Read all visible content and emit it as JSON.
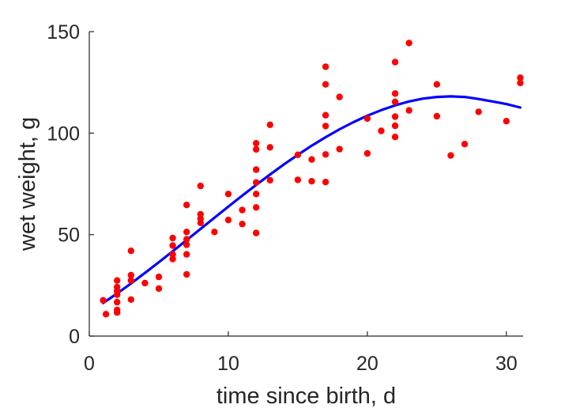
{
  "chart_data": {
    "type": "scatter",
    "title": "",
    "xlabel": "time since birth, d",
    "ylabel": "wet weight, g",
    "xlim": [
      0,
      31.2
    ],
    "ylim": [
      0,
      150
    ],
    "xticks": [
      0,
      10,
      20,
      30
    ],
    "xtick_labels": [
      "0",
      "10",
      "20",
      "30"
    ],
    "yticks": [
      0,
      50,
      100,
      150
    ],
    "ytick_labels": [
      "0",
      "50",
      "100",
      "150"
    ],
    "grid": false,
    "legend": "none",
    "colors": {
      "points": "#ff0000",
      "fit": "#0000ff",
      "axis": "#262626"
    },
    "series": [
      {
        "kind": "scatter",
        "points": [
          [
            1,
            17.6
          ],
          [
            1.2,
            10.8
          ],
          [
            2,
            27.4
          ],
          [
            2,
            24.1
          ],
          [
            2,
            22.2
          ],
          [
            2,
            20.4
          ],
          [
            2,
            16.7
          ],
          [
            2,
            12.9
          ],
          [
            2,
            11.6
          ],
          [
            3,
            42.0
          ],
          [
            3,
            30.0
          ],
          [
            3,
            27.4
          ],
          [
            3,
            18.0
          ],
          [
            4,
            26.1
          ],
          [
            5,
            29.2
          ],
          [
            5,
            23.4
          ],
          [
            6,
            48.3
          ],
          [
            6,
            44.6
          ],
          [
            6,
            40.3
          ],
          [
            6,
            38.0
          ],
          [
            7,
            64.6
          ],
          [
            7,
            51.3
          ],
          [
            7,
            47.7
          ],
          [
            7,
            45.0
          ],
          [
            7,
            40.3
          ],
          [
            7,
            30.4
          ],
          [
            8,
            74.0
          ],
          [
            8,
            60.0
          ],
          [
            8,
            57.8
          ],
          [
            8,
            55.8
          ],
          [
            9,
            51.3
          ],
          [
            10,
            70.0
          ],
          [
            10,
            57.2
          ],
          [
            11,
            62.1
          ],
          [
            11,
            55.2
          ],
          [
            12,
            95.0
          ],
          [
            12,
            92.0
          ],
          [
            12,
            82.0
          ],
          [
            12,
            75.7
          ],
          [
            12,
            70.0
          ],
          [
            12,
            63.4
          ],
          [
            12,
            50.8
          ],
          [
            13,
            104.1
          ],
          [
            13,
            93.0
          ],
          [
            13,
            76.8
          ],
          [
            15,
            89.3
          ],
          [
            15,
            77.0
          ],
          [
            16,
            87.0
          ],
          [
            16,
            76.3
          ],
          [
            17,
            132.7
          ],
          [
            17,
            124.0
          ],
          [
            17,
            108.8
          ],
          [
            17,
            103.5
          ],
          [
            17,
            89.5
          ],
          [
            17,
            75.9
          ],
          [
            18,
            117.8
          ],
          [
            18,
            92.1
          ],
          [
            20,
            107.2
          ],
          [
            20,
            90.0
          ],
          [
            21,
            101.1
          ],
          [
            22,
            135.0
          ],
          [
            22,
            119.5
          ],
          [
            22,
            115.4
          ],
          [
            22,
            108.1
          ],
          [
            22,
            103.6
          ],
          [
            22,
            98.1
          ],
          [
            23,
            144.4
          ],
          [
            23,
            111.2
          ],
          [
            25,
            124.0
          ],
          [
            25,
            108.3
          ],
          [
            26,
            89.0
          ],
          [
            27,
            94.6
          ],
          [
            28,
            110.5
          ],
          [
            30,
            105.9
          ],
          [
            31,
            127.3
          ],
          [
            31,
            124.7
          ]
        ]
      },
      {
        "kind": "line",
        "points": [
          [
            1,
            16.3
          ],
          [
            2,
            21.0
          ],
          [
            3,
            25.9
          ],
          [
            4,
            31.1
          ],
          [
            5,
            36.4
          ],
          [
            6,
            41.8
          ],
          [
            7,
            47.3
          ],
          [
            8,
            52.8
          ],
          [
            9,
            58.3
          ],
          [
            10,
            63.8
          ],
          [
            11,
            69.2
          ],
          [
            12,
            74.5
          ],
          [
            13,
            79.6
          ],
          [
            14,
            84.6
          ],
          [
            15,
            89.3
          ],
          [
            16,
            93.8
          ],
          [
            17,
            98.0
          ],
          [
            18,
            101.9
          ],
          [
            19,
            105.4
          ],
          [
            20,
            108.6
          ],
          [
            21,
            111.3
          ],
          [
            22,
            113.7
          ],
          [
            23,
            115.6
          ],
          [
            24,
            117.0
          ],
          [
            25,
            117.8
          ],
          [
            26,
            118.1
          ],
          [
            27,
            117.8
          ],
          [
            28,
            116.8
          ],
          [
            29,
            115.6
          ],
          [
            30,
            114.3
          ],
          [
            31,
            112.6
          ]
        ]
      }
    ]
  }
}
